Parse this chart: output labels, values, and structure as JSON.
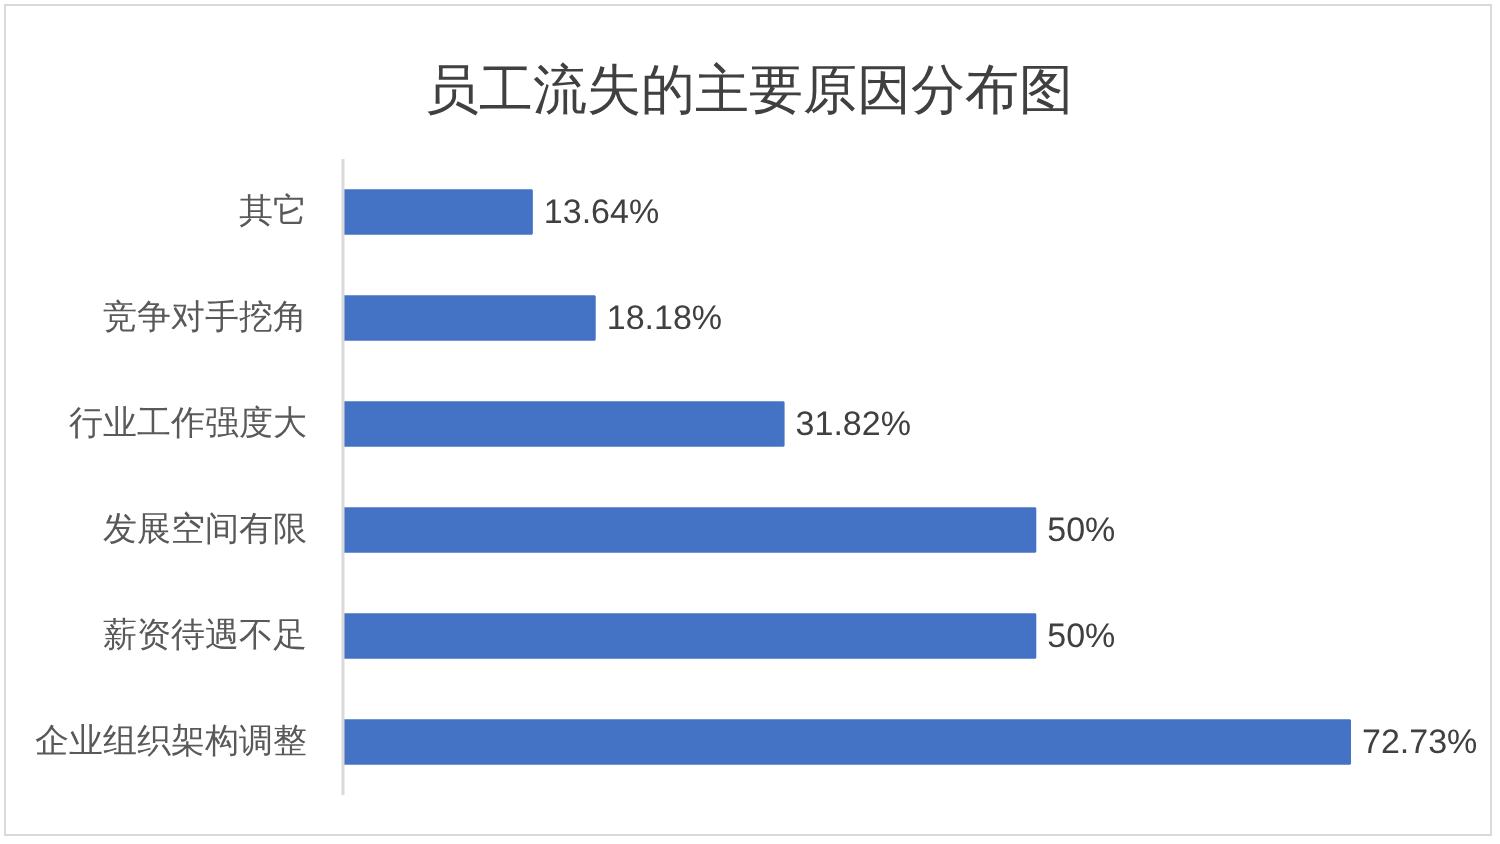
{
  "chart_data": {
    "type": "bar",
    "orientation": "horizontal",
    "title": "员工流失的主要原因分布图",
    "categories": [
      "其它",
      "竞争对手挖角",
      "行业工作强度大",
      "发展空间有限",
      "薪资待遇不足",
      "企业组织架构调整"
    ],
    "values": [
      13.64,
      18.18,
      31.82,
      50,
      50,
      72.73
    ],
    "value_labels": [
      "13.64%",
      "18.18%",
      "31.82%",
      "50%",
      "50%",
      "72.73%"
    ],
    "color": "#4472c4",
    "grid": false
  }
}
